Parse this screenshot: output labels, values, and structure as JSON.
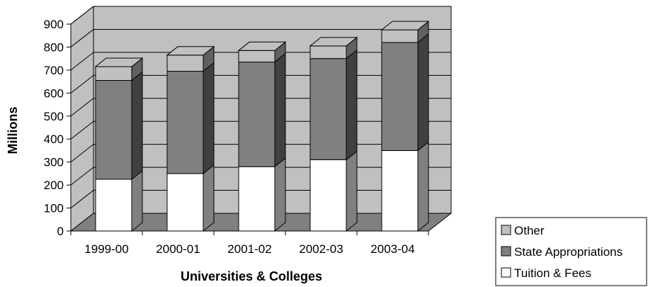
{
  "chart_data": {
    "type": "bar",
    "stacked": true,
    "three_d": true,
    "categories": [
      "1999-00",
      "2000-01",
      "2001-02",
      "2002-03",
      "2003-04"
    ],
    "series": [
      {
        "name": "Tuition & Fees",
        "values": [
          225,
          250,
          280,
          310,
          350
        ],
        "color": "#ffffff"
      },
      {
        "name": "State Appropriations",
        "values": [
          430,
          445,
          455,
          440,
          470
        ],
        "color": "#808080"
      },
      {
        "name": "Other",
        "values": [
          60,
          70,
          50,
          55,
          55
        ],
        "color": "#c0c0c0"
      }
    ],
    "xlabel": "Universities & Colleges",
    "ylabel": "Millions",
    "ylim": [
      0,
      900
    ],
    "yticks": [
      0,
      100,
      200,
      300,
      400,
      500,
      600,
      700,
      800,
      900
    ],
    "grid": true,
    "legend": {
      "placement": "bottom-right",
      "order": [
        "Other",
        "State Appropriations",
        "Tuition & Fees"
      ]
    },
    "colors": {
      "wall": "#c0c0c0",
      "floor": "#808080",
      "stroke": "#000000"
    }
  }
}
